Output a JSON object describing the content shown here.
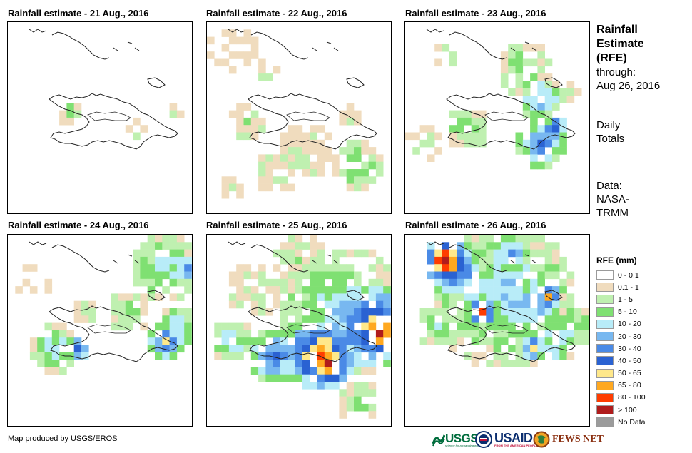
{
  "panels": [
    {
      "title": "Rainfall estimate - 21 Aug., 2016"
    },
    {
      "title": "Rainfall estimate - 22 Aug., 2016"
    },
    {
      "title": "Rainfall estimate - 23 Aug., 2016"
    },
    {
      "title": "Rainfall estimate - 24 Aug., 2016"
    },
    {
      "title": "Rainfall estimate - 25 Aug., 2016"
    },
    {
      "title": "Rainfall estimate - 26 Aug., 2016"
    }
  ],
  "side": {
    "title_lines": [
      "Rainfall",
      "Estimate",
      "(RFE)"
    ],
    "through_label": "through:",
    "through_date": "Aug 26, 2016",
    "totals_lines": [
      "Daily",
      "Totals"
    ],
    "data_lines": [
      "Data:",
      "NASA-",
      "TRMM"
    ]
  },
  "legend": {
    "title": "RFE (mm)",
    "items": [
      {
        "label": "0 - 0.1",
        "color": "#ffffff"
      },
      {
        "label": "0.1 - 1",
        "color": "#f0dcbe"
      },
      {
        "label": "1 - 5",
        "color": "#bff0b0"
      },
      {
        "label": "5 - 10",
        "color": "#7fe072"
      },
      {
        "label": "10 - 20",
        "color": "#b8ecf8"
      },
      {
        "label": "20 - 30",
        "color": "#78b8f0"
      },
      {
        "label": "30 - 40",
        "color": "#4a8ae6"
      },
      {
        "label": "40 - 50",
        "color": "#2a62d2"
      },
      {
        "label": "50 - 65",
        "color": "#ffe88a"
      },
      {
        "label": "65 - 80",
        "color": "#ffa820"
      },
      {
        "label": "80 - 100",
        "color": "#ff3c00"
      },
      {
        "label": "> 100",
        "color": "#b01c1c"
      },
      {
        "label": "No Data",
        "color": "#9b9b9b"
      }
    ]
  },
  "credit": "Map produced by USGS/EROS",
  "logos": {
    "usgs": "USGS",
    "usgs_tagline": "science for a changing world",
    "usaid": "USAID",
    "usaid_tagline": "FROM THE AMERICAN PEOPLE",
    "fews": "FEWS NET"
  }
}
